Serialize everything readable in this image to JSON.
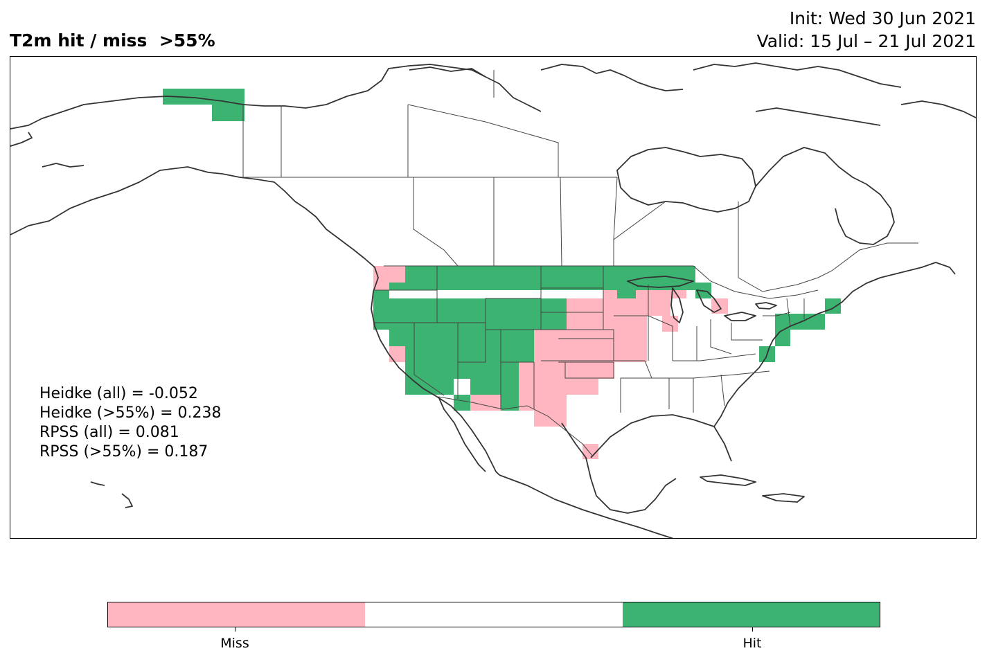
{
  "title": "T2m hit / miss  >55%",
  "init_line": "Init: Wed 30 Jun 2021",
  "valid_line": "Valid: 15 Jul – 21 Jul 2021",
  "stats": [
    "Heidke (all) = -0.052",
    "Heidke (>55%) = 0.238",
    "RPSS (all) = 0.081",
    "RPSS (>55%) = 0.187"
  ],
  "colors": {
    "miss": "#ffb6c1",
    "neutral": "#ffffff",
    "hit": "#3cb371",
    "coast": "#333333"
  },
  "colorbar": {
    "labels": [
      "Miss",
      "Hit"
    ]
  },
  "map_cells": {
    "hit_regions": [
      "Alaska north slope",
      "Pacific Northwest",
      "Northern Rockies",
      "Northern Plains",
      "Great Basin",
      "Southwest",
      "Upper Midwest",
      "Northeast"
    ],
    "miss_regions": [
      "Washington coast",
      "Central Plains",
      "Southern Plains",
      "Iowa / Wisconsin",
      "Michigan",
      "Texas coast"
    ]
  }
}
